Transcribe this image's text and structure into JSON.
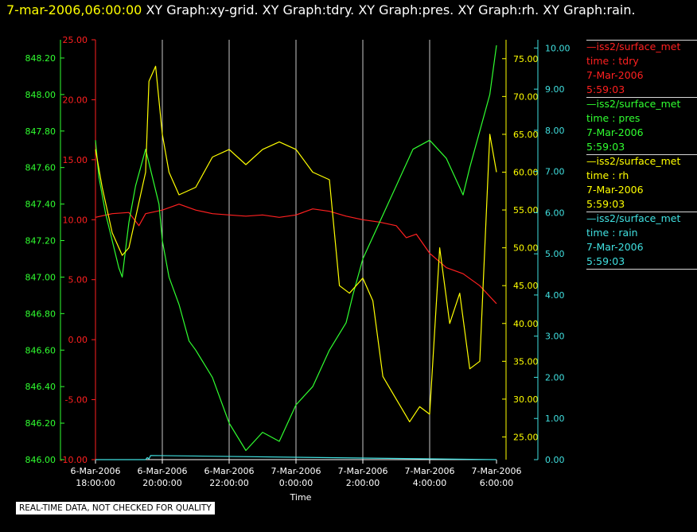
{
  "header": {
    "timestamp": "7-mar-2006,06:00:00",
    "titles": "XY Graph:xy-grid.  XY Graph:tdry.  XY Graph:pres.  XY Graph:rh.  XY Graph:rain."
  },
  "disclaimer": "REAL-TIME DATA, NOT CHECKED FOR QUALITY",
  "colors": {
    "tdry": "#ff2020",
    "pres": "#30ff30",
    "rh": "#ffff00",
    "rain": "#40e0e0",
    "grid": "#c8c8c8"
  },
  "legend": [
    {
      "name": "—iss2/surface_met",
      "var": "time : tdry",
      "date": "7-Mar-2006",
      "time": "5:59:03",
      "color": "#ff2020"
    },
    {
      "name": "—iss2/surface_met",
      "var": "time : pres",
      "date": "7-Mar-2006",
      "time": "5:59:03",
      "color": "#30ff30"
    },
    {
      "name": "—iss2/surface_met",
      "var": "time : rh",
      "date": "7-Mar-2006",
      "time": "5:59:03",
      "color": "#ffff00"
    },
    {
      "name": "—iss2/surface_met",
      "var": "time : rain",
      "date": "7-Mar-2006",
      "time": "5:59:03",
      "color": "#40e0e0"
    }
  ],
  "chart_data": {
    "type": "line",
    "xlabel": "Time",
    "x_ticks": [
      [
        "6-Mar-2006",
        "18:00:00"
      ],
      [
        "6-Mar-2006",
        "20:00:00"
      ],
      [
        "6-Mar-2006",
        "22:00:00"
      ],
      [
        "7-Mar-2006",
        "0:00:00"
      ],
      [
        "7-Mar-2006",
        "2:00:00"
      ],
      [
        "7-Mar-2006",
        "4:00:00"
      ],
      [
        "7-Mar-2006",
        "6:00:00"
      ]
    ],
    "x_hours_range": [
      0,
      12
    ],
    "grid": "vertical",
    "axes": {
      "tdry": {
        "range": [
          -10,
          25
        ],
        "ticks": [
          "-10.00",
          "-5.00",
          "0.00",
          "5.00",
          "10.00",
          "15.00",
          "20.00",
          "25.00"
        ]
      },
      "pres": {
        "range": [
          846.0,
          848.3
        ],
        "ticks": [
          "846.00",
          "846.20",
          "846.40",
          "846.60",
          "846.80",
          "847.00",
          "847.20",
          "847.40",
          "847.60",
          "847.80",
          "848.00",
          "848.20"
        ]
      },
      "rh": {
        "range": [
          22.0,
          77.5
        ],
        "ticks": [
          "25.00",
          "30.00",
          "35.00",
          "40.00",
          "45.00",
          "50.00",
          "55.00",
          "60.00",
          "65.00",
          "70.00",
          "75.00"
        ]
      },
      "rain": {
        "range": [
          0,
          10.2
        ],
        "ticks": [
          "0.00",
          "1.00",
          "2.00",
          "3.00",
          "4.00",
          "5.00",
          "6.00",
          "7.00",
          "8.00",
          "9.00",
          "10.00"
        ]
      }
    },
    "series": [
      {
        "name": "tdry",
        "x": [
          0,
          0.5,
          1,
          1.3,
          1.5,
          2,
          2.5,
          3,
          3.5,
          4,
          4.5,
          5,
          5.5,
          6,
          6.5,
          7,
          7.5,
          8,
          8.5,
          9,
          9.3,
          9.6,
          10,
          10.5,
          11,
          11.5,
          12
        ],
        "values": [
          10.2,
          10.5,
          10.6,
          9.5,
          10.5,
          10.8,
          11.3,
          10.8,
          10.5,
          10.4,
          10.3,
          10.4,
          10.2,
          10.4,
          10.9,
          10.7,
          10.3,
          10.0,
          9.8,
          9.5,
          8.5,
          8.8,
          7.2,
          6.0,
          5.5,
          4.5,
          3.0
        ]
      },
      {
        "name": "pres",
        "x": [
          0,
          0.1,
          0.3,
          0.5,
          0.7,
          0.8,
          1.0,
          1.2,
          1.5,
          1.7,
          1.9,
          2.0,
          2.2,
          2.5,
          2.8,
          3.0,
          3.5,
          4.0,
          4.5,
          5.0,
          5.5,
          6.0,
          6.5,
          7.0,
          7.5,
          7.7,
          8.0,
          8.5,
          9.0,
          9.5,
          10.0,
          10.5,
          11.0,
          11.2,
          11.5,
          11.8,
          12.0
        ],
        "values": [
          847.75,
          847.55,
          847.35,
          847.2,
          847.05,
          847.0,
          847.3,
          847.5,
          847.7,
          847.55,
          847.4,
          847.2,
          847.0,
          846.85,
          846.65,
          846.6,
          846.45,
          846.2,
          846.05,
          846.15,
          846.1,
          846.3,
          846.4,
          846.6,
          846.75,
          846.9,
          847.1,
          847.3,
          847.5,
          847.7,
          847.75,
          847.65,
          847.45,
          847.6,
          847.8,
          848.0,
          848.27
        ]
      },
      {
        "name": "rh",
        "x": [
          0,
          0.2,
          0.5,
          0.8,
          1.0,
          1.5,
          1.6,
          1.8,
          2.0,
          2.2,
          2.5,
          3.0,
          3.5,
          4.0,
          4.5,
          5.0,
          5.5,
          6.0,
          6.5,
          7.0,
          7.3,
          7.6,
          8.0,
          8.3,
          8.6,
          9.0,
          9.4,
          9.7,
          10.0,
          10.3,
          10.6,
          10.9,
          11.2,
          11.5,
          11.8,
          12.0
        ],
        "values": [
          63,
          58,
          52,
          49,
          50,
          60,
          72,
          74,
          65,
          60,
          57,
          58,
          62,
          63,
          61,
          63,
          64,
          63,
          60,
          59,
          45,
          44,
          46,
          43,
          33,
          30,
          27,
          29,
          28,
          50,
          40,
          44,
          34,
          35,
          65,
          60
        ]
      },
      {
        "name": "rain",
        "x": [
          0,
          1.5,
          1.55,
          1.6,
          1.65,
          12
        ],
        "values": [
          0,
          0,
          0.05,
          0.02,
          0.1,
          0
        ]
      }
    ]
  }
}
